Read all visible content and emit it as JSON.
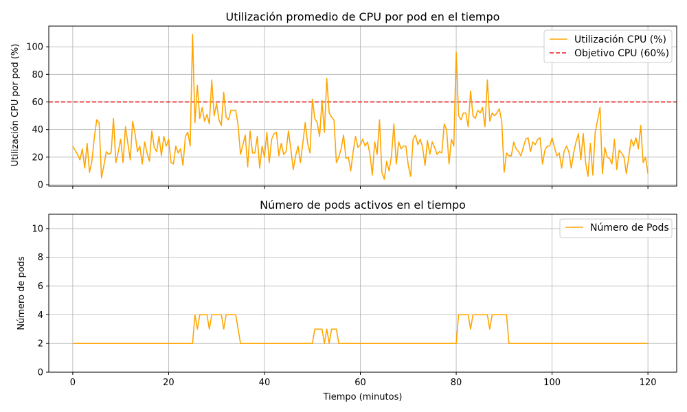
{
  "chart_data": [
    {
      "type": "line",
      "title": "Utilización promedio de CPU por pod en el tiempo",
      "xlabel": "",
      "ylabel": "Utilización CPU por pod (%)",
      "xlim": [
        -5,
        126
      ],
      "ylim": [
        -1,
        115
      ],
      "xticks": [
        0,
        20,
        40,
        60,
        80,
        100,
        120
      ],
      "yticks": [
        0,
        20,
        40,
        60,
        80,
        100
      ],
      "grid": true,
      "legend_position": "top-right",
      "series": [
        {
          "name": "Utilización CPU (%)",
          "color": "#ffa500",
          "x": [
            0,
            0.5,
            1,
            1.5,
            2,
            2.5,
            3,
            3.5,
            4,
            4.5,
            5,
            5.5,
            6,
            6.5,
            7,
            7.5,
            8,
            8.5,
            9,
            9.5,
            10,
            10.5,
            11,
            11.5,
            12,
            12.5,
            13,
            13.5,
            14,
            14.5,
            15,
            15.5,
            16,
            16.5,
            17,
            17.5,
            18,
            18.5,
            19,
            19.5,
            20,
            20.5,
            21,
            21.5,
            22,
            22.5,
            23,
            23.5,
            24,
            24.5,
            25,
            25.5,
            26,
            26.5,
            27,
            27.5,
            28,
            28.5,
            29,
            29.5,
            30,
            30.5,
            31,
            31.5,
            32,
            32.5,
            33,
            33.5,
            34,
            34.5,
            35,
            35.5,
            36,
            36.5,
            37,
            37.5,
            38,
            38.5,
            39,
            39.5,
            40,
            40.5,
            41,
            41.5,
            42,
            42.5,
            43,
            43.5,
            44,
            44.5,
            45,
            45.5,
            46,
            46.5,
            47,
            47.5,
            48,
            48.5,
            49,
            49.5,
            50,
            50.5,
            51,
            51.5,
            52,
            52.5,
            53,
            53.5,
            54,
            54.5,
            55,
            55.5,
            56,
            56.5,
            57,
            57.5,
            58,
            58.5,
            59,
            59.5,
            60,
            60.5,
            61,
            61.5,
            62,
            62.5,
            63,
            63.5,
            64,
            64.5,
            65,
            65.5,
            66,
            66.5,
            67,
            67.5,
            68,
            68.5,
            69,
            69.5,
            70,
            70.5,
            71,
            71.5,
            72,
            72.5,
            73,
            73.5,
            74,
            74.5,
            75,
            75.5,
            76,
            76.5,
            77,
            77.5,
            78,
            78.5,
            79,
            79.5,
            80,
            80.5,
            81,
            81.5,
            82,
            82.5,
            83,
            83.5,
            84,
            84.5,
            85,
            85.5,
            86,
            86.5,
            87,
            87.5,
            88,
            88.5,
            89,
            89.5,
            90,
            90.5,
            91,
            91.5,
            92,
            92.5,
            93,
            93.5,
            94,
            94.5,
            95,
            95.5,
            96,
            96.5,
            97,
            97.5,
            98,
            98.5,
            99,
            99.5,
            100,
            100.5,
            101,
            101.5,
            102,
            102.5,
            103,
            103.5,
            104,
            104.5,
            105,
            105.5,
            106,
            106.5,
            107,
            107.5,
            108,
            108.5,
            109,
            109.5,
            110,
            110.5,
            111,
            111.5,
            112,
            112.5,
            113,
            113.5,
            114,
            114.5,
            115,
            115.5,
            116,
            116.5,
            117,
            117.5,
            118,
            118.5,
            119,
            119.5,
            120
          ],
          "values": [
            28,
            25,
            22,
            18,
            26,
            12,
            30,
            9,
            17,
            34,
            47,
            45,
            5,
            14,
            24,
            22,
            23,
            48,
            16,
            24,
            33,
            16,
            42,
            30,
            18,
            46,
            37,
            24,
            28,
            15,
            31,
            23,
            17,
            39,
            27,
            24,
            35,
            21,
            35,
            28,
            33,
            16,
            15,
            28,
            23,
            26,
            14,
            35,
            38,
            28,
            109,
            45,
            72,
            48,
            56,
            46,
            51,
            44,
            76,
            50,
            59,
            47,
            43,
            67,
            49,
            47,
            54,
            54,
            54,
            43,
            22,
            29,
            36,
            13,
            39,
            23,
            23,
            35,
            12,
            28,
            20,
            38,
            16,
            33,
            37,
            38,
            21,
            30,
            22,
            24,
            39,
            26,
            11,
            21,
            28,
            16,
            30,
            45,
            30,
            23,
            62,
            48,
            45,
            35,
            61,
            38,
            77,
            52,
            49,
            47,
            16,
            20,
            26,
            36,
            19,
            20,
            10,
            24,
            35,
            27,
            29,
            33,
            28,
            31,
            22,
            7,
            31,
            22,
            47,
            9,
            4,
            17,
            10,
            21,
            44,
            15,
            31,
            26,
            28,
            28,
            14,
            6,
            33,
            36,
            29,
            33,
            27,
            14,
            32,
            22,
            31,
            27,
            22,
            24,
            23,
            44,
            40,
            15,
            33,
            28,
            96,
            50,
            47,
            52,
            52,
            42,
            68,
            50,
            48,
            54,
            52,
            56,
            42,
            76,
            46,
            52,
            50,
            52,
            55,
            46,
            9,
            23,
            21,
            21,
            31,
            26,
            24,
            21,
            27,
            33,
            34,
            24,
            31,
            29,
            33,
            34,
            15,
            25,
            28,
            28,
            34,
            27,
            21,
            23,
            12,
            24,
            28,
            24,
            12,
            23,
            31,
            37,
            18,
            37,
            16,
            6,
            30,
            7,
            38,
            47,
            56,
            8,
            27,
            20,
            19,
            15,
            33,
            11,
            25,
            23,
            20,
            8,
            20,
            33,
            28,
            34,
            26,
            43,
            16,
            20,
            8
          ]
        },
        {
          "name": "Objetivo CPU (60%)",
          "color": "#e31a1c",
          "style": "dashed",
          "y": 60
        }
      ]
    },
    {
      "type": "line",
      "title": "Número de pods activos en el tiempo",
      "xlabel": "Tiempo (minutos)",
      "ylabel": "Número de pods",
      "xlim": [
        -5,
        126
      ],
      "ylim": [
        0,
        11
      ],
      "xticks": [
        0,
        20,
        40,
        60,
        80,
        100,
        120
      ],
      "yticks": [
        0,
        2,
        4,
        6,
        8,
        10
      ],
      "grid": true,
      "legend_position": "top-right",
      "series": [
        {
          "name": "Número de Pods",
          "color": "#ffa500",
          "x": [
            0,
            25,
            25.5,
            26,
            26.5,
            27,
            28,
            28.5,
            29,
            29.5,
            30,
            31,
            31.5,
            32,
            32.5,
            33,
            34,
            35,
            35.5,
            50,
            50.5,
            51,
            52,
            52.5,
            53,
            53.5,
            54,
            55,
            55.5,
            80,
            80.5,
            81,
            82,
            82.5,
            83,
            83.5,
            84,
            85,
            86,
            86.5,
            87,
            87.5,
            88,
            89,
            90,
            90.5,
            91,
            120
          ],
          "values": [
            2,
            2,
            4,
            3,
            4,
            4,
            4,
            3,
            4,
            4,
            4,
            4,
            3,
            4,
            4,
            4,
            4,
            2,
            2,
            2,
            3,
            3,
            3,
            2,
            3,
            2,
            3,
            3,
            2,
            2,
            4,
            4,
            4,
            4,
            3,
            4,
            4,
            4,
            4,
            4,
            3,
            4,
            4,
            4,
            4,
            4,
            2,
            2
          ]
        }
      ]
    }
  ]
}
